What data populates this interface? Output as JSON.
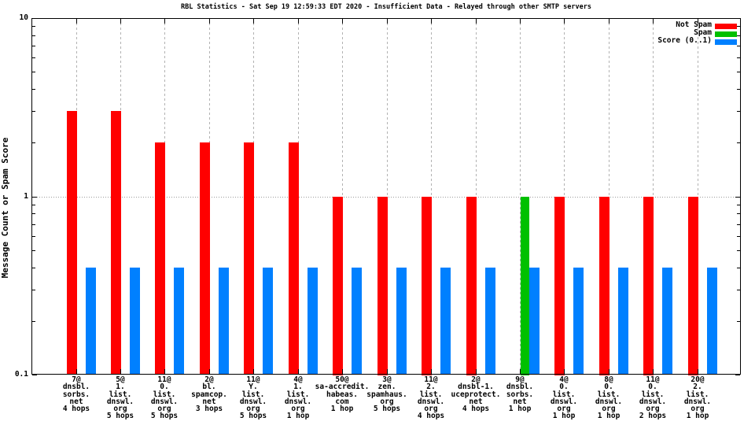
{
  "chart_data": {
    "type": "bar",
    "title": "RBL Statistics - Sat Sep 19 12:59:33 EDT 2020 - Insufficient Data - Relayed through other SMTP servers",
    "ylabel": "Message Count or Spam Score",
    "xlabel": "",
    "yscale": "log",
    "ylim": [
      0.1,
      10
    ],
    "ytick_labels": [
      "0.1",
      "1",
      "10"
    ],
    "grid": {
      "vertical": "dashed line at every category",
      "horizontal": "dotted line at y=1",
      "grid_color": "#b2b2b2"
    },
    "legend": {
      "position": "top-right-inside",
      "entries": [
        {
          "label": "Not Spam",
          "color": "#ff0000"
        },
        {
          "label": "Spam",
          "color": "#00c000"
        },
        {
          "label": "Score (0..1)",
          "color": "#0080ff"
        }
      ]
    },
    "categories": [
      {
        "lines": [
          "7@",
          "dnsbl.",
          "sorbs.",
          "net",
          "4 hops"
        ]
      },
      {
        "lines": [
          "5@",
          "1.",
          "list.",
          "dnswl.",
          "org",
          "5 hops"
        ]
      },
      {
        "lines": [
          "11@",
          "0.",
          "list.",
          "dnswl.",
          "org",
          "5 hops"
        ]
      },
      {
        "lines": [
          "2@",
          "bl.",
          "spamcop.",
          "net",
          "3 hops"
        ]
      },
      {
        "lines": [
          "11@",
          "Y.",
          "list.",
          "dnswl.",
          "org",
          "5 hops"
        ]
      },
      {
        "lines": [
          "4@",
          "1.",
          "list.",
          "dnswl.",
          "org",
          "1 hop"
        ]
      },
      {
        "lines": [
          "50@",
          "sa-accredit.",
          "habeas.",
          "com",
          "1 hop"
        ]
      },
      {
        "lines": [
          "3@",
          "zen.",
          "spamhaus.",
          "org",
          "5 hops"
        ]
      },
      {
        "lines": [
          "11@",
          "2.",
          "list.",
          "dnswl.",
          "org",
          "4 hops"
        ]
      },
      {
        "lines": [
          "2@",
          "dnsbl-1.",
          "uceprotect.",
          "net",
          "4 hops"
        ]
      },
      {
        "lines": [
          "9@",
          "dnsbl.",
          "sorbs.",
          "net",
          "1 hop"
        ]
      },
      {
        "lines": [
          "4@",
          "0.",
          "list.",
          "dnswl.",
          "org",
          "1 hop"
        ]
      },
      {
        "lines": [
          "8@",
          "0.",
          "list.",
          "dnswl.",
          "org",
          "1 hop"
        ]
      },
      {
        "lines": [
          "11@",
          "0.",
          "list.",
          "dnswl.",
          "org",
          "2 hops"
        ]
      },
      {
        "lines": [
          "20@",
          "2.",
          "list.",
          "dnswl.",
          "org",
          "1 hop"
        ]
      }
    ],
    "series": [
      {
        "name": "Not Spam",
        "color": "#ff0000",
        "values": [
          3,
          3,
          2,
          2,
          2,
          2,
          1,
          1,
          1,
          1,
          0,
          1,
          1,
          1,
          1
        ]
      },
      {
        "name": "Spam",
        "color": "#00c000",
        "values": [
          0,
          0,
          0,
          0,
          0,
          0,
          0,
          0,
          0,
          0,
          1,
          0,
          0,
          0,
          0
        ]
      },
      {
        "name": "Score (0..1)",
        "color": "#0080ff",
        "values": [
          0.4,
          0.4,
          0.4,
          0.4,
          0.4,
          0.4,
          0.4,
          0.4,
          0.4,
          0.4,
          0.4,
          0.4,
          0.4,
          0.4,
          0.4
        ]
      }
    ]
  }
}
